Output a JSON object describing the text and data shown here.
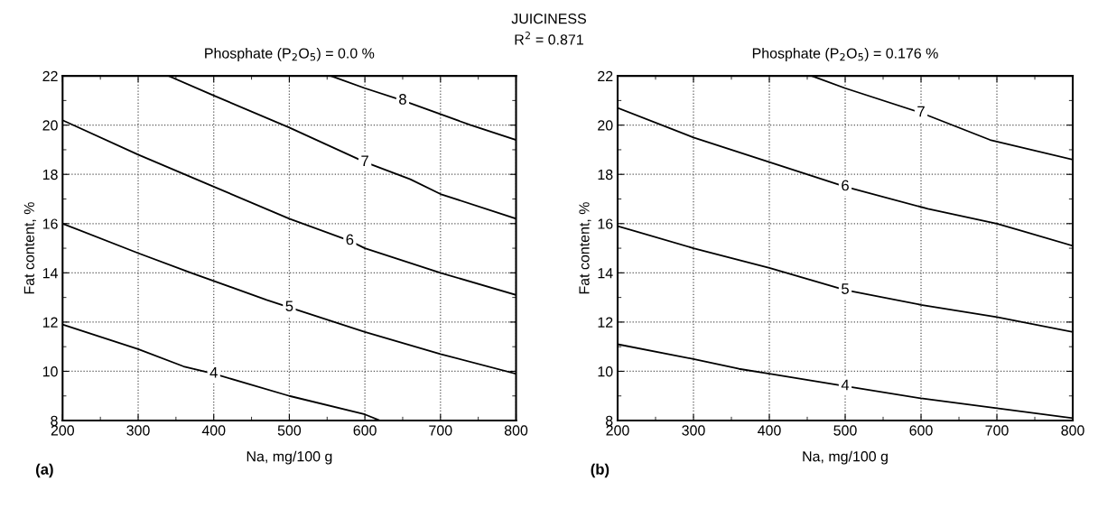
{
  "chart_data": [
    {
      "type": "line",
      "title": "Phosphate (P$_{2}$O$_{5}$) = 0.0 %",
      "xlabel": "Na, mg/100 g",
      "ylabel": "Fat content, %",
      "annotations": [
        "JUICINESS",
        "R$^{2}$ = 0.871",
        "(a)"
      ],
      "xlim": [
        200,
        800
      ],
      "xticks": [
        200,
        300,
        400,
        500,
        600,
        700,
        800
      ],
      "ylim": [
        8,
        22
      ],
      "yticks": [
        8,
        10,
        12,
        14,
        16,
        18,
        20,
        22
      ],
      "grid": true,
      "line_style": "solid",
      "marker": "none",
      "series": [
        {
          "name": "4",
          "color": "#000000",
          "x": [
            200,
            300,
            360,
            400,
            500,
            600,
            620
          ],
          "values": [
            11.9,
            10.9,
            10.2,
            9.9,
            9.0,
            8.25,
            8.0
          ]
        },
        {
          "name": "5",
          "color": "#000000",
          "x": [
            200,
            300,
            370,
            470,
            500,
            600,
            700,
            800
          ],
          "values": [
            16.0,
            14.8,
            14.0,
            12.9,
            12.6,
            11.6,
            10.7,
            9.9
          ]
        },
        {
          "name": "6",
          "color": "#000000",
          "x": [
            200,
            300,
            400,
            500,
            580,
            600,
            700,
            800
          ],
          "values": [
            20.2,
            18.8,
            17.5,
            16.2,
            15.3,
            15.0,
            14.0,
            13.1
          ]
        },
        {
          "name": "7",
          "color": "#000000",
          "x": [
            340,
            400,
            500,
            600,
            660,
            700,
            800
          ],
          "values": [
            22.0,
            21.2,
            19.9,
            18.5,
            17.8,
            17.2,
            16.2
          ]
        },
        {
          "name": "8",
          "color": "#000000",
          "x": [
            555,
            600,
            650,
            740,
            800
          ],
          "values": [
            22.0,
            21.5,
            21.0,
            20.0,
            19.4
          ]
        }
      ]
    },
    {
      "type": "line",
      "title": "Phosphate (P$_{2}$O$_{5}$) = 0.176 %",
      "xlabel": "Na, mg/100 g",
      "ylabel": "Fat content, %",
      "annotations": [
        "(b)"
      ],
      "xlim": [
        200,
        800
      ],
      "xticks": [
        200,
        300,
        400,
        500,
        600,
        700,
        800
      ],
      "ylim": [
        8,
        22
      ],
      "yticks": [
        8,
        10,
        12,
        14,
        16,
        18,
        20,
        22
      ],
      "grid": true,
      "line_style": "solid",
      "marker": "none",
      "series": [
        {
          "name": "4",
          "color": "#000000",
          "x": [
            200,
            300,
            360,
            400,
            500,
            600,
            700,
            800
          ],
          "values": [
            11.1,
            10.5,
            10.1,
            9.9,
            9.4,
            8.9,
            8.5,
            8.1
          ]
        },
        {
          "name": "5",
          "color": "#000000",
          "x": [
            200,
            300,
            400,
            500,
            600,
            700,
            800
          ],
          "values": [
            15.9,
            15.0,
            14.2,
            13.3,
            12.7,
            12.2,
            11.6
          ]
        },
        {
          "name": "6",
          "color": "#000000",
          "x": [
            200,
            300,
            400,
            500,
            609,
            700,
            800
          ],
          "values": [
            20.7,
            19.5,
            18.5,
            17.5,
            16.6,
            16.0,
            15.1
          ]
        },
        {
          "name": "7",
          "color": "#000000",
          "x": [
            456,
            500,
            600,
            691,
            800
          ],
          "values": [
            22.0,
            21.5,
            20.5,
            19.4,
            18.6
          ]
        }
      ]
    }
  ]
}
